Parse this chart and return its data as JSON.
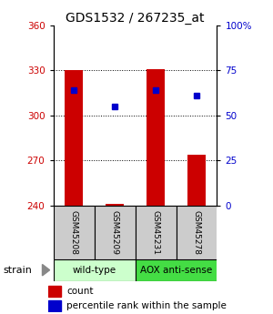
{
  "title": "GDS1532 / 267235_at",
  "samples": [
    "GSM45208",
    "GSM45209",
    "GSM45231",
    "GSM45278"
  ],
  "bar_values": [
    330,
    241,
    331,
    274
  ],
  "percentile_values": [
    64,
    55,
    64,
    61
  ],
  "ylim_left": [
    240,
    360
  ],
  "ylim_right": [
    0,
    100
  ],
  "yticks_left": [
    240,
    270,
    300,
    330,
    360
  ],
  "yticks_right": [
    0,
    25,
    50,
    75,
    100
  ],
  "ytick_labels_right": [
    "0",
    "25",
    "50",
    "75",
    "100%"
  ],
  "bar_color": "#cc0000",
  "dot_color": "#0000cc",
  "wt_color": "#ccffcc",
  "aox_color": "#44dd44",
  "sample_box_color": "#cccccc",
  "grid_color": "#000000",
  "bar_width": 0.45,
  "title_fontsize": 10,
  "legend_fontsize": 7.5,
  "tick_fontsize": 7.5,
  "sample_fontsize": 6.5,
  "group_fontsize": 7.5,
  "strain_fontsize": 8
}
